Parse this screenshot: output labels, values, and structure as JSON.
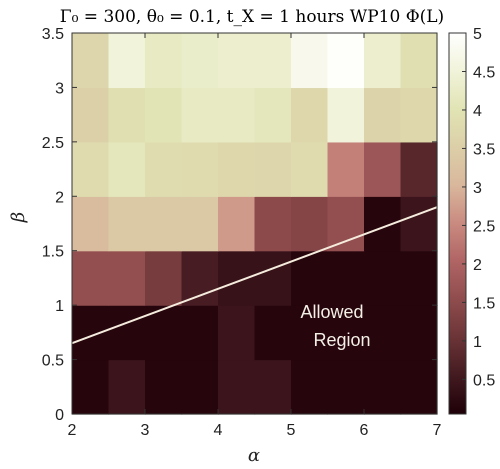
{
  "chart_data": {
    "type": "heatmap",
    "title": "Γ₀ = 300, θ₀ = 0.1, t_X = 1 hours WP10 Φ(L)",
    "xlabel": "α",
    "ylabel": "β",
    "xlim": [
      2,
      7
    ],
    "ylim": [
      0,
      3.5
    ],
    "x_ticks": [
      "2",
      "3",
      "4",
      "5",
      "6",
      "7"
    ],
    "y_ticks": [
      "0",
      "0.5",
      "1",
      "1.5",
      "2",
      "2.5",
      "3",
      "3.5"
    ],
    "x_centers": [
      2.25,
      2.75,
      3.25,
      3.75,
      4.25,
      4.75,
      5.25,
      5.75,
      6.25,
      6.75
    ],
    "y_centers": [
      0.25,
      0.75,
      1.25,
      1.75,
      2.25,
      2.75,
      3.25
    ],
    "values": [
      [
        0.15,
        0.45,
        0.15,
        0.15,
        0.45,
        0.45,
        0.15,
        0.15,
        0.15,
        0.15
      ],
      [
        0.15,
        0.15,
        0.15,
        0.15,
        0.45,
        0.15,
        0.15,
        0.15,
        0.15,
        0.15
      ],
      [
        1.6,
        1.6,
        1.2,
        0.6,
        0.4,
        0.4,
        0.15,
        0.15,
        0.15,
        0.15
      ],
      [
        3.1,
        3.4,
        3.4,
        3.4,
        2.7,
        1.5,
        1.4,
        1.6,
        0.15,
        0.45
      ],
      [
        3.8,
        4.1,
        3.85,
        3.8,
        3.7,
        3.65,
        3.8,
        2.4,
        1.75,
        0.8
      ],
      [
        3.55,
        3.9,
        4.0,
        4.2,
        4.2,
        4.1,
        3.7,
        4.5,
        3.6,
        3.7
      ],
      [
        3.65,
        4.5,
        4.2,
        4.3,
        4.35,
        4.35,
        4.75,
        4.95,
        4.35,
        3.9
      ]
    ],
    "colorbar": {
      "range": [
        0.05,
        5
      ],
      "ticks": [
        "0.5",
        "1",
        "1.5",
        "2",
        "2.5",
        "3",
        "3.5",
        "4",
        "4.5",
        "5"
      ],
      "colormap": [
        "#1f0008",
        "#421a20",
        "#6b3437",
        "#8f4c4d",
        "#b06464",
        "#c98a80",
        "#d9b79c",
        "#dccfa8",
        "#e1e4b4",
        "#f1f3da",
        "#ffffff"
      ]
    },
    "line": {
      "x": [
        2,
        7
      ],
      "y": [
        0.65,
        1.9
      ],
      "color": "#f5ecdd"
    },
    "annotation": [
      "Allowed",
      "Region"
    ]
  }
}
